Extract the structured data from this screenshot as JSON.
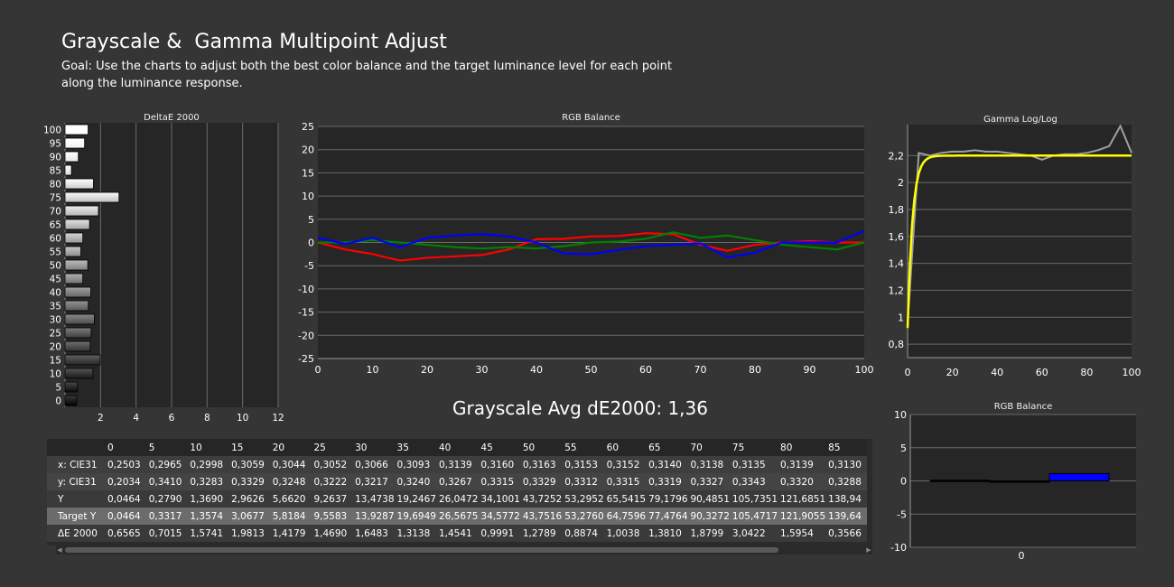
{
  "header": {
    "title": "Grayscale &  Gamma Multipoint Adjust",
    "goal": "Goal: Use the charts to adjust both the best color balance and the target luminance level for each point along the luminance response."
  },
  "colors": {
    "red": "#ff0000",
    "green": "#008000",
    "blue": "#0000ff",
    "gamma_target": "#ffff00",
    "gamma_measured": "#a0a0a0"
  },
  "chart_data": [
    {
      "type": "bar",
      "orientation": "horizontal",
      "title": "DeltaE 2000",
      "categories": [
        "0",
        "5",
        "10",
        "15",
        "20",
        "25",
        "30",
        "35",
        "40",
        "45",
        "50",
        "55",
        "60",
        "65",
        "70",
        "75",
        "80",
        "85",
        "90",
        "95",
        "100"
      ],
      "values": [
        0.66,
        0.7,
        1.57,
        1.98,
        1.42,
        1.47,
        1.65,
        1.31,
        1.45,
        1.0,
        1.28,
        0.89,
        1.0,
        1.38,
        1.88,
        3.04,
        1.6,
        0.36,
        0.75,
        1.1,
        1.3
      ],
      "y_tick_labels": [
        "100",
        "95",
        "90",
        "85",
        "80",
        "75",
        "70",
        "65",
        "60",
        "55",
        "50",
        "45",
        "40",
        "35",
        "30",
        "25",
        "20",
        "15",
        "10",
        "5",
        "0"
      ],
      "x_tick_labels": [
        "2",
        "4",
        "6",
        "8",
        "10",
        "12"
      ],
      "xlim": [
        0,
        12
      ]
    },
    {
      "type": "line",
      "title": "RGB Balance",
      "x": [
        0,
        5,
        10,
        15,
        20,
        25,
        30,
        35,
        40,
        45,
        50,
        55,
        60,
        65,
        70,
        75,
        80,
        85,
        90,
        95,
        100
      ],
      "series": [
        {
          "color": "red",
          "values": [
            0,
            -1.5,
            -2.5,
            -3.9,
            -3.3,
            -3.0,
            -2.7,
            -1.5,
            0.7,
            0.8,
            1.3,
            1.4,
            2.0,
            1.8,
            -0.5,
            -1.8,
            -0.5,
            0,
            0.3,
            0,
            0
          ]
        },
        {
          "color": "green",
          "values": [
            0,
            0,
            0.5,
            0,
            -0.5,
            -1.0,
            -1.3,
            -1.0,
            -1.3,
            -0.8,
            0,
            0.2,
            0.8,
            2.2,
            1.0,
            1.5,
            0.5,
            -0.5,
            -1.0,
            -1.5,
            0
          ]
        },
        {
          "color": "blue",
          "values": [
            1.0,
            -0.3,
            1.0,
            -1.0,
            1.0,
            1.5,
            1.8,
            1.3,
            0,
            -2.4,
            -2.5,
            -1.6,
            -0.8,
            -0.5,
            -0.2,
            -3.2,
            -2.2,
            0,
            0,
            0,
            2.5
          ]
        }
      ],
      "y_tick_labels": [
        "25",
        "20",
        "15",
        "10",
        "5",
        "0",
        "-5",
        "-10",
        "-15",
        "-20",
        "-25"
      ],
      "x_tick_labels": [
        "0",
        "10",
        "20",
        "30",
        "40",
        "50",
        "60",
        "70",
        "80",
        "90",
        "100"
      ],
      "xlim": [
        0,
        100
      ],
      "ylim": [
        -25,
        25
      ]
    },
    {
      "type": "line",
      "title": "Gamma Log/Log",
      "x": [
        0,
        5,
        10,
        15,
        20,
        25,
        30,
        35,
        40,
        45,
        50,
        55,
        60,
        65,
        70,
        75,
        80,
        85,
        90,
        95,
        100
      ],
      "series": [
        {
          "color": "gamma_measured",
          "values": [
            0.95,
            2.22,
            2.2,
            2.22,
            2.23,
            2.23,
            2.24,
            2.23,
            2.23,
            2.22,
            2.21,
            2.2,
            2.17,
            2.2,
            2.21,
            2.21,
            2.22,
            2.24,
            2.27,
            2.42,
            2.22
          ]
        },
        {
          "color": "gamma_target",
          "values": [
            0.92,
            2.16,
            2.2,
            2.2,
            2.2,
            2.2,
            2.2,
            2.2,
            2.2,
            2.2,
            2.2,
            2.2,
            2.2,
            2.2,
            2.2,
            2.2,
            2.2,
            2.2,
            2.2,
            2.2,
            2.2
          ]
        }
      ],
      "y_tick_labels": [
        "2,2",
        "2",
        "1,8",
        "1,6",
        "1,4",
        "1,2",
        "1",
        "0,8"
      ],
      "x_tick_labels": [
        "0",
        "20",
        "40",
        "60",
        "80",
        "100"
      ],
      "xlim": [
        0,
        100
      ],
      "ylim": [
        0.7,
        2.43
      ]
    },
    {
      "type": "bar",
      "title": "RGB Balance",
      "categories": [
        "0"
      ],
      "series": [
        {
          "color": "red",
          "values": [
            0.1
          ]
        },
        {
          "color": "green",
          "values": [
            -0.1
          ]
        },
        {
          "color": "blue",
          "values": [
            1.1
          ]
        }
      ],
      "y_tick_labels": [
        "10",
        "5",
        "0",
        "-5",
        "-10"
      ],
      "x_tick_labels": [
        "0"
      ],
      "ylim": [
        -10,
        10
      ]
    }
  ],
  "summary": {
    "avg_label": "Grayscale Avg dE2000: 1,36"
  },
  "table": {
    "columns": [
      "0",
      "5",
      "10",
      "15",
      "20",
      "25",
      "30",
      "35",
      "40",
      "45",
      "50",
      "55",
      "60",
      "65",
      "70",
      "75",
      "80",
      "85"
    ],
    "rows": [
      {
        "label": "x: CIE31",
        "values": [
          "0,2503",
          "0,2965",
          "0,2998",
          "0,3059",
          "0,3044",
          "0,3052",
          "0,3066",
          "0,3093",
          "0,3139",
          "0,3160",
          "0,3163",
          "0,3153",
          "0,3152",
          "0,3140",
          "0,3138",
          "0,3135",
          "0,3139",
          "0,3130"
        ]
      },
      {
        "label": "y: CIE31",
        "values": [
          "0,2034",
          "0,3410",
          "0,3283",
          "0,3329",
          "0,3248",
          "0,3222",
          "0,3217",
          "0,3240",
          "0,3267",
          "0,3315",
          "0,3329",
          "0,3312",
          "0,3315",
          "0,3319",
          "0,3327",
          "0,3343",
          "0,3320",
          "0,3288"
        ]
      },
      {
        "label": "Y",
        "values": [
          "0,0464",
          "0,2790",
          "1,3690",
          "2,9626",
          "5,6620",
          "9,2637",
          "13,4738",
          "19,2467",
          "26,0472",
          "34,1001",
          "43,7252",
          "53,2952",
          "65,5415",
          "79,1796",
          "90,4851",
          "105,7351",
          "121,6851",
          "138,94"
        ]
      },
      {
        "label": "Target Y",
        "values": [
          "0,0464",
          "0,3317",
          "1,3574",
          "3,0677",
          "5,8184",
          "9,5583",
          "13,9287",
          "19,6949",
          "26,5675",
          "34,5772",
          "43,7516",
          "53,2760",
          "64,7596",
          "77,4764",
          "90,3272",
          "105,4717",
          "121,9055",
          "139,64"
        ]
      },
      {
        "label": "ΔE 2000",
        "values": [
          "0,6565",
          "0,7015",
          "1,5741",
          "1,9813",
          "1,4179",
          "1,4690",
          "1,6483",
          "1,3138",
          "1,4541",
          "0,9991",
          "1,2789",
          "0,8874",
          "1,0038",
          "1,3810",
          "1,8799",
          "3,0422",
          "1,5954",
          "0,3566"
        ]
      }
    ]
  }
}
